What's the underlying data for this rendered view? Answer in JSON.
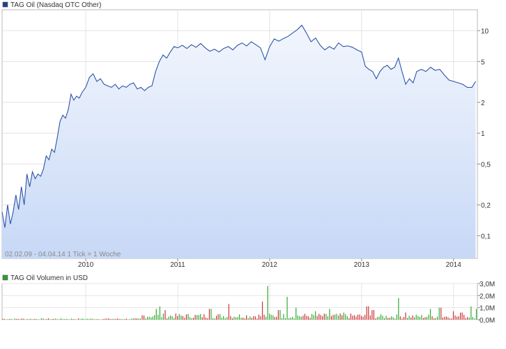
{
  "chart_data": [
    {
      "type": "area",
      "legend": "TAG Oil (Nasdaq OTC Other)",
      "legend_color": "#1f3f8f",
      "line_color": "#2d55a6",
      "fill_top": "#f2f6fd",
      "fill_bottom": "#c7d8f6",
      "y_scale": "log",
      "ylim": [
        0.06,
        16
      ],
      "y_ticks": [
        {
          "v": 0.1,
          "label": "0,1"
        },
        {
          "v": 0.2,
          "label": "0,2"
        },
        {
          "v": 0.5,
          "label": "0,5"
        },
        {
          "v": 1,
          "label": "1"
        },
        {
          "v": 2,
          "label": "2"
        },
        {
          "v": 5,
          "label": "5"
        },
        {
          "v": 10,
          "label": "10"
        }
      ],
      "xlim": [
        2009.09,
        2014.26
      ],
      "x_ticks": [
        {
          "v": 2010.0,
          "label": "2010"
        },
        {
          "v": 2011.0,
          "label": "2011"
        },
        {
          "v": 2012.0,
          "label": "2012"
        },
        {
          "v": 2013.0,
          "label": "2013"
        },
        {
          "v": 2014.0,
          "label": "2014"
        }
      ],
      "grid": true,
      "legend_position": "top-left",
      "range_note": "02.02.09 - 04.04.14   1 Tick = 1 Woche",
      "points": [
        [
          2009.09,
          0.17
        ],
        [
          2009.12,
          0.12
        ],
        [
          2009.15,
          0.2
        ],
        [
          2009.18,
          0.13
        ],
        [
          2009.21,
          0.17
        ],
        [
          2009.24,
          0.25
        ],
        [
          2009.27,
          0.18
        ],
        [
          2009.3,
          0.3
        ],
        [
          2009.33,
          0.2
        ],
        [
          2009.36,
          0.4
        ],
        [
          2009.39,
          0.3
        ],
        [
          2009.42,
          0.42
        ],
        [
          2009.45,
          0.36
        ],
        [
          2009.48,
          0.4
        ],
        [
          2009.51,
          0.38
        ],
        [
          2009.54,
          0.45
        ],
        [
          2009.57,
          0.6
        ],
        [
          2009.6,
          0.55
        ],
        [
          2009.63,
          0.7
        ],
        [
          2009.66,
          0.65
        ],
        [
          2009.69,
          0.9
        ],
        [
          2009.72,
          1.3
        ],
        [
          2009.75,
          1.5
        ],
        [
          2009.78,
          1.4
        ],
        [
          2009.81,
          1.7
        ],
        [
          2009.84,
          2.4
        ],
        [
          2009.87,
          2.1
        ],
        [
          2009.9,
          2.3
        ],
        [
          2009.93,
          2.2
        ],
        [
          2009.96,
          2.5
        ],
        [
          2010.0,
          2.8
        ],
        [
          2010.04,
          3.5
        ],
        [
          2010.08,
          3.8
        ],
        [
          2010.12,
          3.2
        ],
        [
          2010.16,
          3.4
        ],
        [
          2010.2,
          3.0
        ],
        [
          2010.24,
          2.9
        ],
        [
          2010.28,
          2.8
        ],
        [
          2010.32,
          3.0
        ],
        [
          2010.36,
          2.7
        ],
        [
          2010.4,
          2.9
        ],
        [
          2010.44,
          2.8
        ],
        [
          2010.48,
          3.0
        ],
        [
          2010.52,
          3.1
        ],
        [
          2010.56,
          2.7
        ],
        [
          2010.6,
          2.8
        ],
        [
          2010.64,
          2.6
        ],
        [
          2010.68,
          2.8
        ],
        [
          2010.72,
          2.9
        ],
        [
          2010.76,
          4.0
        ],
        [
          2010.8,
          5.0
        ],
        [
          2010.84,
          5.8
        ],
        [
          2010.88,
          5.4
        ],
        [
          2010.92,
          6.2
        ],
        [
          2010.96,
          7.0
        ],
        [
          2011.0,
          6.8
        ],
        [
          2011.05,
          7.2
        ],
        [
          2011.1,
          6.7
        ],
        [
          2011.15,
          7.3
        ],
        [
          2011.2,
          6.9
        ],
        [
          2011.25,
          7.5
        ],
        [
          2011.3,
          6.8
        ],
        [
          2011.35,
          6.3
        ],
        [
          2011.4,
          6.6
        ],
        [
          2011.45,
          6.2
        ],
        [
          2011.5,
          6.7
        ],
        [
          2011.55,
          7.0
        ],
        [
          2011.6,
          6.5
        ],
        [
          2011.65,
          7.2
        ],
        [
          2011.7,
          7.6
        ],
        [
          2011.75,
          7.1
        ],
        [
          2011.8,
          7.8
        ],
        [
          2011.85,
          7.3
        ],
        [
          2011.9,
          6.8
        ],
        [
          2011.95,
          5.2
        ],
        [
          2012.0,
          7.0
        ],
        [
          2012.05,
          8.3
        ],
        [
          2012.1,
          7.9
        ],
        [
          2012.15,
          8.4
        ],
        [
          2012.2,
          8.8
        ],
        [
          2012.25,
          9.5
        ],
        [
          2012.3,
          10.2
        ],
        [
          2012.35,
          11.3
        ],
        [
          2012.4,
          9.5
        ],
        [
          2012.45,
          7.8
        ],
        [
          2012.5,
          8.5
        ],
        [
          2012.55,
          7.2
        ],
        [
          2012.6,
          6.5
        ],
        [
          2012.65,
          7.0
        ],
        [
          2012.7,
          6.6
        ],
        [
          2012.75,
          7.6
        ],
        [
          2012.8,
          7.0
        ],
        [
          2012.85,
          7.1
        ],
        [
          2012.9,
          6.9
        ],
        [
          2012.95,
          6.5
        ],
        [
          2013.0,
          6.2
        ],
        [
          2013.04,
          4.5
        ],
        [
          2013.08,
          4.2
        ],
        [
          2013.12,
          4.0
        ],
        [
          2013.16,
          3.4
        ],
        [
          2013.2,
          4.0
        ],
        [
          2013.24,
          4.4
        ],
        [
          2013.28,
          4.6
        ],
        [
          2013.32,
          4.2
        ],
        [
          2013.36,
          4.4
        ],
        [
          2013.4,
          5.4
        ],
        [
          2013.44,
          4.0
        ],
        [
          2013.48,
          3.0
        ],
        [
          2013.52,
          3.4
        ],
        [
          2013.56,
          3.1
        ],
        [
          2013.6,
          4.0
        ],
        [
          2013.65,
          4.2
        ],
        [
          2013.7,
          4.0
        ],
        [
          2013.75,
          4.4
        ],
        [
          2013.8,
          4.1
        ],
        [
          2013.85,
          4.2
        ],
        [
          2013.9,
          3.7
        ],
        [
          2013.95,
          3.3
        ],
        [
          2014.0,
          3.2
        ],
        [
          2014.05,
          3.1
        ],
        [
          2014.1,
          3.0
        ],
        [
          2014.15,
          2.8
        ],
        [
          2014.2,
          2.8
        ],
        [
          2014.24,
          3.2
        ]
      ]
    },
    {
      "type": "bar",
      "legend": "TAG Oil Volumen in USD",
      "legend_color": "#2e9e2e",
      "up_color": "#33a833",
      "down_color": "#cc3333",
      "ylim": [
        0,
        3.0
      ],
      "y_ticks": [
        {
          "v": 0,
          "label": "0,0M"
        },
        {
          "v": 1,
          "label": "1,0M"
        },
        {
          "v": 2,
          "label": "2,0M"
        },
        {
          "v": 3,
          "label": "3,0M"
        }
      ],
      "xlim": [
        2009.09,
        2014.26
      ],
      "grid": true,
      "legend_position": "top-left",
      "spikes": [
        [
          2010.76,
          0.9
        ],
        [
          2010.8,
          1.1
        ],
        [
          2010.86,
          0.8
        ],
        [
          2011.35,
          0.9
        ],
        [
          2011.55,
          1.3
        ],
        [
          2011.92,
          1.5
        ],
        [
          2011.98,
          2.8
        ],
        [
          2012.1,
          0.8
        ],
        [
          2012.18,
          1.9
        ],
        [
          2012.28,
          1.0
        ],
        [
          2012.5,
          0.7
        ],
        [
          2012.65,
          0.9
        ],
        [
          2012.8,
          0.6
        ],
        [
          2013.06,
          1.1
        ],
        [
          2013.12,
          0.8
        ],
        [
          2013.4,
          1.8
        ],
        [
          2013.48,
          0.6
        ],
        [
          2013.75,
          0.9
        ],
        [
          2013.85,
          1.0
        ],
        [
          2014.0,
          0.7
        ],
        [
          2014.08,
          0.6
        ],
        [
          2014.18,
          1.1
        ],
        [
          2014.24,
          0.9
        ]
      ]
    }
  ]
}
